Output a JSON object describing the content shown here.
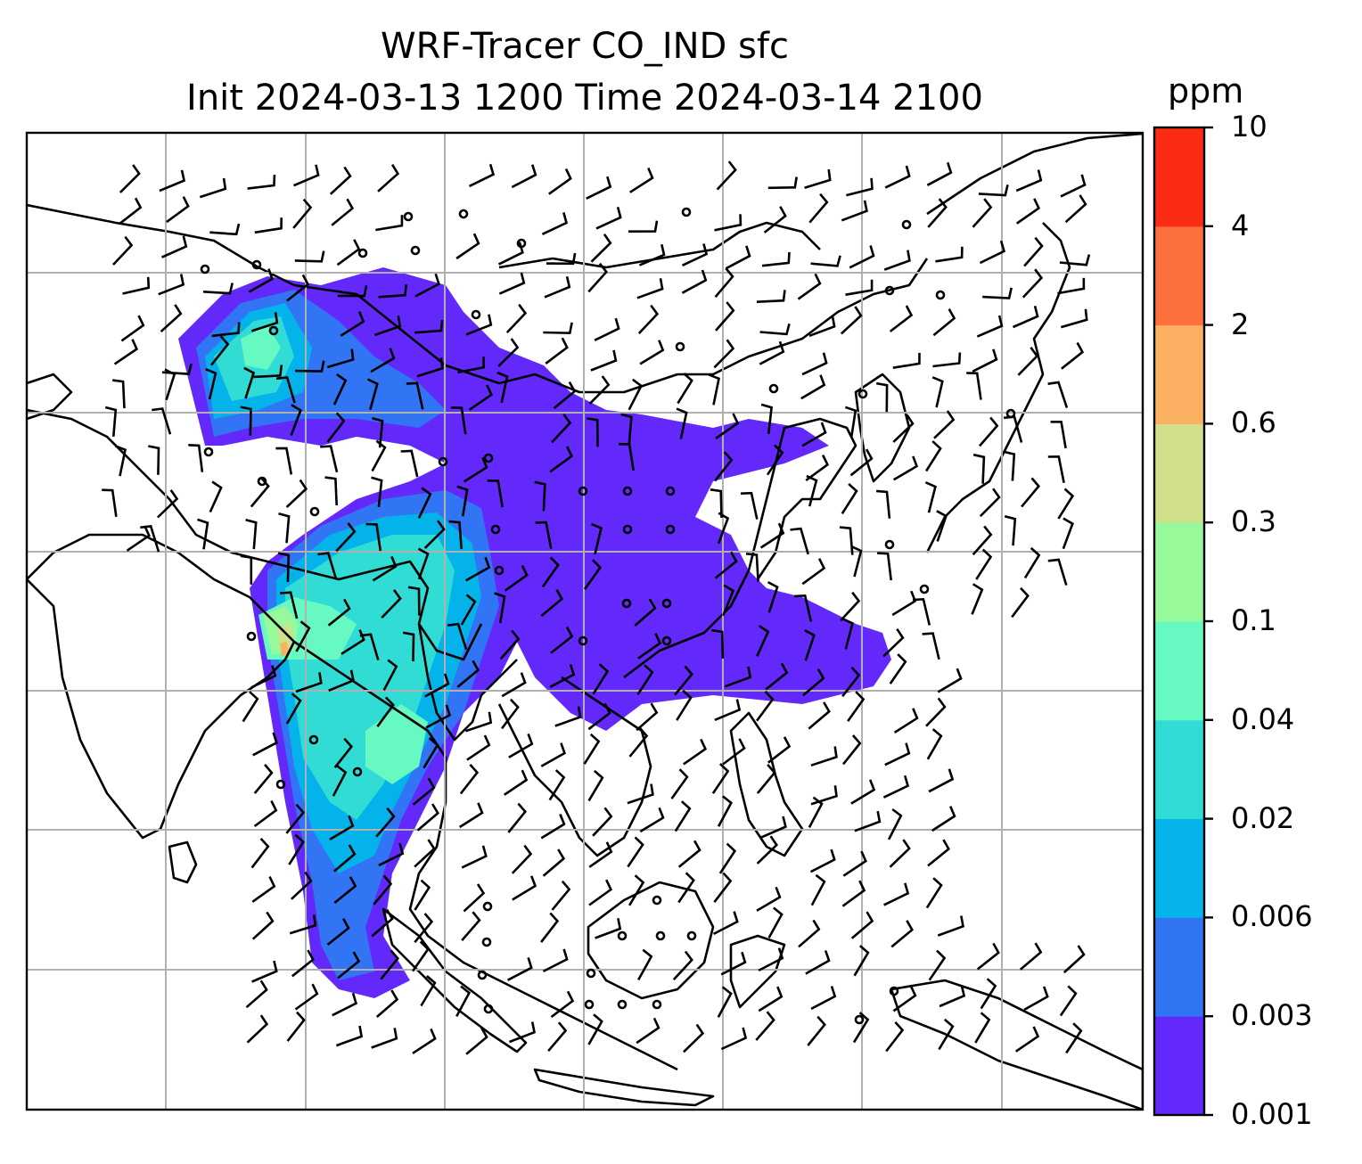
{
  "title": {
    "line1": "WRF-Tracer CO_IND sfc",
    "line2": "Init 2024-03-13 1200 Time 2024-03-14 2100"
  },
  "colorbar": {
    "unit": "ppm",
    "ticks": [
      "0.001",
      "0.003",
      "0.006",
      "0.02",
      "0.04",
      "0.1",
      "0.3",
      "0.6",
      "2",
      "4",
      "10"
    ],
    "colors": [
      "#6229fa",
      "#3174f4",
      "#04b3ea",
      "#30dcd4",
      "#66f9c2",
      "#98f99a",
      "#cfdf8a",
      "#fcb061",
      "#fd6f3c",
      "#fb2b14"
    ]
  },
  "map": {
    "gridlines": true,
    "coastline_color": "#000000",
    "grid_color": "#b0b0b0",
    "barb_color": "#000000"
  }
}
